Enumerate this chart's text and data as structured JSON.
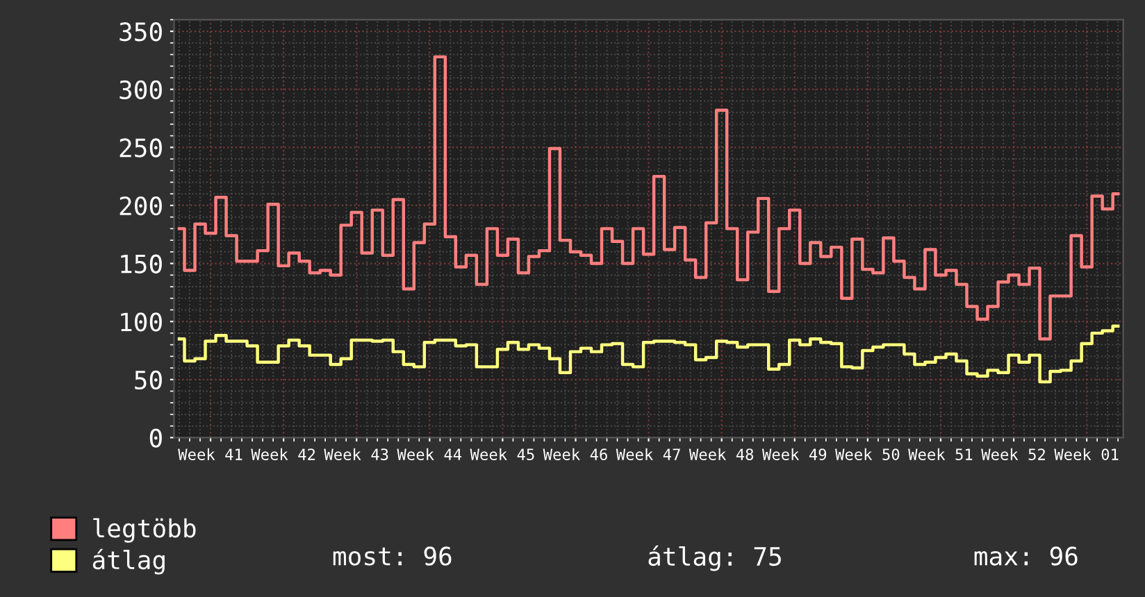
{
  "chart_data": {
    "type": "step",
    "categories": [
      null,
      null,
      null,
      "Week 41",
      null,
      null,
      null,
      null,
      null,
      null,
      "Week 42",
      null,
      null,
      null,
      null,
      null,
      null,
      "Week 43",
      null,
      null,
      null,
      null,
      null,
      null,
      "Week 44",
      null,
      null,
      null,
      null,
      null,
      null,
      "Week 45",
      null,
      null,
      null,
      null,
      null,
      null,
      "Week 46",
      null,
      null,
      null,
      null,
      null,
      null,
      "Week 47",
      null,
      null,
      null,
      null,
      null,
      null,
      "Week 48",
      null,
      null,
      null,
      null,
      null,
      null,
      "Week 49",
      null,
      null,
      null,
      null,
      null,
      null,
      "Week 50",
      null,
      null,
      null,
      null,
      null,
      null,
      "Week 51",
      null,
      null,
      null,
      null,
      null,
      null,
      "Week 52",
      null,
      null,
      null,
      null,
      null,
      null,
      "Week 01",
      null,
      null,
      null
    ],
    "series": [
      {
        "name": "legtöbb",
        "color": "#ff7f7f",
        "values": [
          180,
          144,
          184,
          176,
          207,
          174,
          152,
          152,
          161,
          201,
          148,
          159,
          152,
          142,
          144,
          140,
          183,
          194,
          159,
          196,
          157,
          205,
          128,
          168,
          184,
          328,
          173,
          147,
          157,
          132,
          180,
          157,
          171,
          142,
          156,
          161,
          249,
          170,
          160,
          157,
          150,
          180,
          169,
          150,
          180,
          158,
          225,
          162,
          181,
          153,
          138,
          185,
          282,
          180,
          136,
          177,
          206,
          126,
          180,
          196,
          150,
          168,
          156,
          164,
          120,
          171,
          145,
          142,
          172,
          152,
          138,
          128,
          162,
          140,
          144,
          132,
          113,
          102,
          113,
          134,
          140,
          132,
          146,
          85,
          122,
          122,
          174,
          147,
          208,
          197,
          210
        ]
      },
      {
        "name": "átlag",
        "color": "#ffff7f",
        "values": [
          85,
          66,
          68,
          83,
          88,
          83,
          83,
          79,
          65,
          65,
          79,
          84,
          79,
          71,
          71,
          63,
          68,
          84,
          84,
          83,
          84,
          74,
          63,
          61,
          82,
          84,
          84,
          79,
          80,
          61,
          61,
          76,
          82,
          76,
          80,
          77,
          68,
          56,
          74,
          77,
          74,
          80,
          81,
          63,
          61,
          82,
          83,
          83,
          82,
          80,
          67,
          69,
          83,
          82,
          78,
          80,
          80,
          59,
          63,
          84,
          80,
          85,
          82,
          81,
          61,
          60,
          75,
          78,
          80,
          80,
          72,
          63,
          65,
          69,
          72,
          66,
          55,
          53,
          58,
          56,
          71,
          65,
          71,
          48,
          57,
          58,
          66,
          81,
          90,
          92,
          96
        ]
      }
    ],
    "ylim": [
      0,
      360
    ],
    "yticks": [
      0,
      50,
      100,
      150,
      200,
      250,
      300,
      350
    ],
    "grid": true,
    "legend": "bottom left",
    "annotations": [
      "most: 96",
      "átlag: 75",
      "max: 96"
    ]
  }
}
